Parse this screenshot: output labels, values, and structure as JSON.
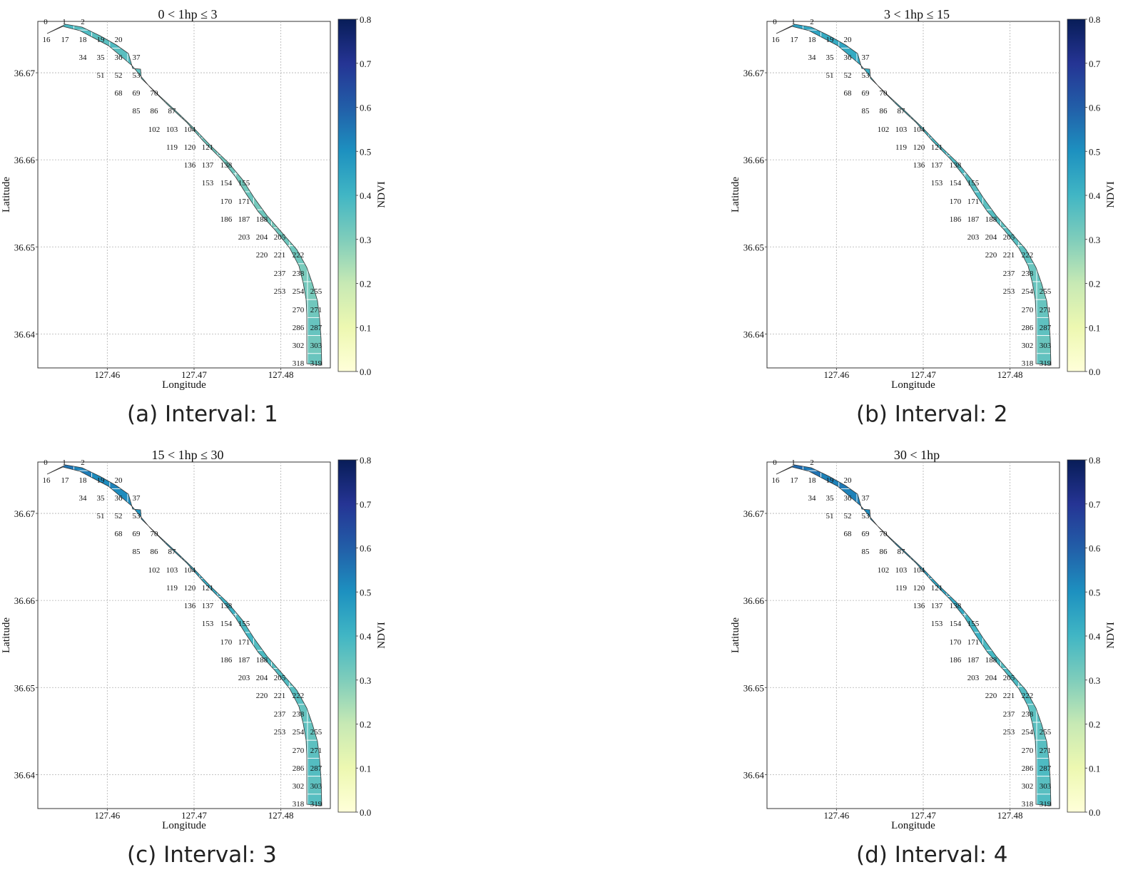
{
  "figure": {
    "panels": [
      {
        "caption": "(a) Interval: 1",
        "title": "0 < 1hp ≤ 3",
        "interval": 1
      },
      {
        "caption": "(b) Interval: 2",
        "title": "3 < 1hp ≤ 15",
        "interval": 2
      },
      {
        "caption": "(c) Interval: 3",
        "title": "15 < 1hp ≤ 30",
        "interval": 3
      },
      {
        "caption": "(d) Interval: 4",
        "title": "30 < 1hp",
        "interval": 4
      }
    ]
  },
  "chart_data": {
    "type": "heatmap",
    "xlabel": "Longitude",
    "ylabel": "Latitude",
    "colorbar_label": "NDVI",
    "colormap": "YlGnBu",
    "colormap_colors": [
      "#ffffd9",
      "#edf8b1",
      "#c7e9b4",
      "#7fcdbb",
      "#41b6c4",
      "#1d91c0",
      "#225ea8",
      "#253494",
      "#081d58"
    ],
    "xticks": [
      "127.46",
      "127.47",
      "127.48"
    ],
    "xtick_values": [
      127.46,
      127.47,
      127.48
    ],
    "yticks": [
      "36.67",
      "36.66",
      "36.65",
      "36.64"
    ],
    "ytick_values": [
      36.67,
      36.66,
      36.65,
      36.64
    ],
    "colorbar_ticks": [
      "0.0",
      "0.1",
      "0.2",
      "0.3",
      "0.4",
      "0.5",
      "0.6",
      "0.7",
      "0.8"
    ],
    "colorbar_range": [
      0,
      0.8
    ],
    "xlim": [
      127.452,
      127.4857
    ],
    "ylim": [
      36.6361,
      36.6759
    ],
    "grid": true,
    "grid_cell_labels": [
      "0",
      "1",
      "2",
      "16",
      "17",
      "18",
      "19",
      "20",
      "34",
      "35",
      "36",
      "37",
      "51",
      "52",
      "53",
      "68",
      "69",
      "70",
      "85",
      "86",
      "87",
      "102",
      "103",
      "104",
      "119",
      "120",
      "121",
      "136",
      "137",
      "138",
      "153",
      "154",
      "155",
      "170",
      "171",
      "186",
      "187",
      "188",
      "203",
      "204",
      "205",
      "220",
      "221",
      "222",
      "237",
      "238",
      "253",
      "254",
      "255",
      "270",
      "271",
      "286",
      "287",
      "302",
      "303",
      "318",
      "319"
    ],
    "ndvi_profile": {
      "segment_positions": [
        0,
        0.15,
        0.3,
        0.45,
        0.6,
        0.8,
        1
      ],
      "values_by_interval": [
        [
          0.38,
          0.36,
          0.34,
          0.33,
          0.32,
          0.32,
          0.33
        ],
        [
          0.45,
          0.43,
          0.4,
          0.38,
          0.36,
          0.34,
          0.34
        ],
        [
          0.55,
          0.5,
          0.45,
          0.41,
          0.37,
          0.35,
          0.36
        ],
        [
          0.57,
          0.52,
          0.47,
          0.43,
          0.38,
          0.36,
          0.37
        ]
      ]
    }
  }
}
